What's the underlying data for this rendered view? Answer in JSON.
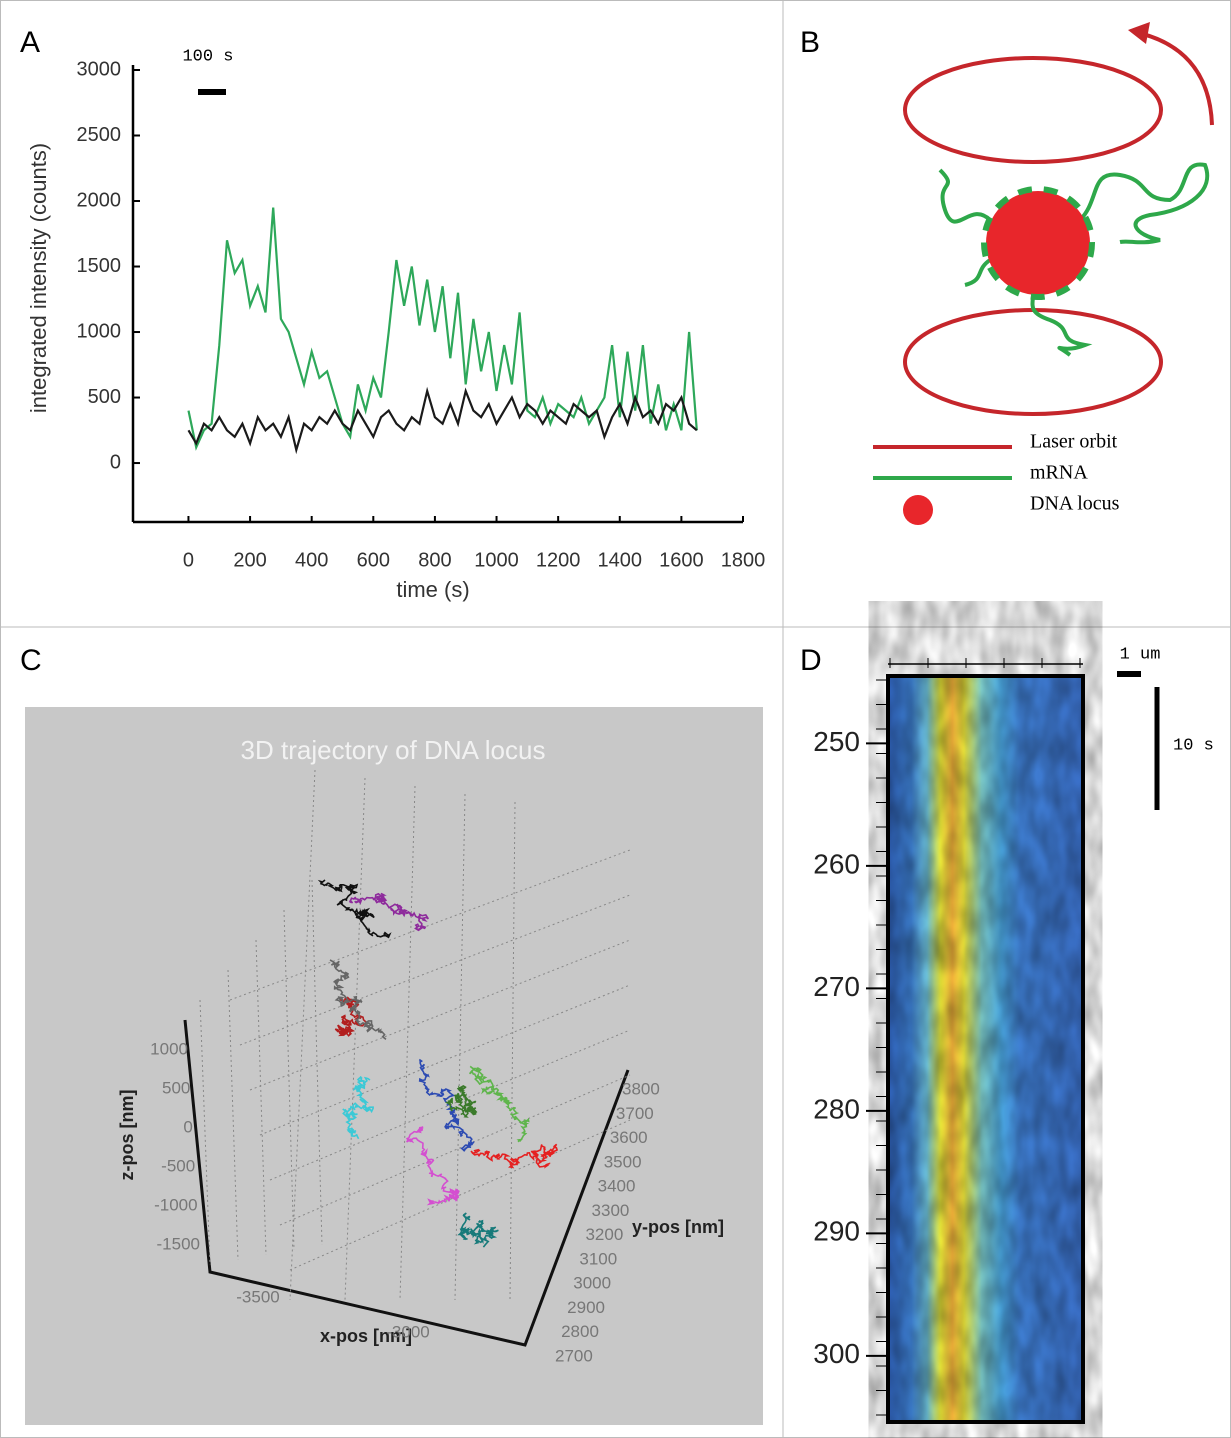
{
  "panel_labels": [
    "A",
    "B",
    "C",
    "D"
  ],
  "chart_data": [
    {
      "type": "line",
      "xlabel": "time (s)",
      "ylabel": "integrated intensity (counts)",
      "annotation": "100 s",
      "xlim": [
        -180,
        1800
      ],
      "ylim": [
        -450,
        3000
      ],
      "xticks": [
        0,
        200,
        400,
        600,
        800,
        1000,
        1200,
        1400,
        1600,
        1800
      ],
      "yticks": [
        0,
        500,
        1000,
        1500,
        2000,
        2500,
        3000
      ],
      "x": [
        0,
        25,
        50,
        75,
        100,
        125,
        150,
        175,
        200,
        225,
        250,
        275,
        300,
        325,
        350,
        375,
        400,
        425,
        450,
        475,
        500,
        525,
        550,
        575,
        600,
        625,
        650,
        675,
        700,
        725,
        750,
        775,
        800,
        825,
        850,
        875,
        900,
        925,
        950,
        975,
        1000,
        1025,
        1050,
        1075,
        1100,
        1125,
        1150,
        1175,
        1200,
        1225,
        1250,
        1275,
        1300,
        1325,
        1350,
        1375,
        1400,
        1425,
        1450,
        1475,
        1500,
        1525,
        1550,
        1575,
        1600,
        1625,
        1650
      ],
      "series": [
        {
          "color": "#2ea85a",
          "values": [
            400,
            120,
            250,
            300,
            900,
            1700,
            1450,
            1550,
            1200,
            1350,
            1150,
            1950,
            1100,
            1000,
            800,
            600,
            850,
            650,
            700,
            500,
            300,
            200,
            600,
            400,
            650,
            500,
            1000,
            1550,
            1200,
            1500,
            1050,
            1400,
            1000,
            1350,
            800,
            1300,
            600,
            1100,
            700,
            1000,
            550,
            900,
            600,
            1150,
            400,
            350,
            500,
            300,
            450,
            400,
            350,
            500,
            300,
            400,
            500,
            900,
            350,
            850,
            400,
            900,
            300,
            600,
            250,
            450,
            250,
            1000,
            250
          ]
        },
        {
          "color": "#1a1a1a",
          "values": [
            250,
            150,
            300,
            250,
            350,
            250,
            200,
            300,
            150,
            350,
            250,
            300,
            200,
            350,
            100,
            300,
            250,
            350,
            300,
            400,
            300,
            250,
            400,
            300,
            200,
            350,
            400,
            300,
            250,
            350,
            300,
            550,
            350,
            300,
            450,
            300,
            550,
            400,
            350,
            450,
            300,
            400,
            500,
            350,
            450,
            400,
            300,
            400,
            350,
            300,
            450,
            400,
            350,
            400,
            200,
            350,
            450,
            300,
            500,
            350,
            400,
            300,
            450,
            400,
            500,
            300,
            250
          ]
        }
      ]
    },
    {
      "type": "scatter3d",
      "title": "3D trajectory of DNA locus",
      "xlabel": "x-pos [nm]",
      "ylabel": "y-pos [nm]",
      "zlabel": "z-pos [nm]",
      "xticks": [
        -3500,
        -3000
      ],
      "yticks": [
        3800,
        3700,
        3600,
        3500,
        3400,
        3300,
        3200,
        3100,
        3000,
        2900,
        2800,
        2700
      ],
      "zticks": [
        1000,
        500,
        0,
        -500,
        -1000,
        -1500
      ]
    },
    {
      "type": "heatmap",
      "ylim": [
        244.5,
        305.4
      ],
      "yticks": [
        250,
        260,
        270,
        280,
        290,
        300
      ],
      "annotations": [
        "1 um",
        "10 s"
      ]
    }
  ],
  "legend": [
    "Laser orbit",
    "mRNA",
    "DNA locus"
  ]
}
